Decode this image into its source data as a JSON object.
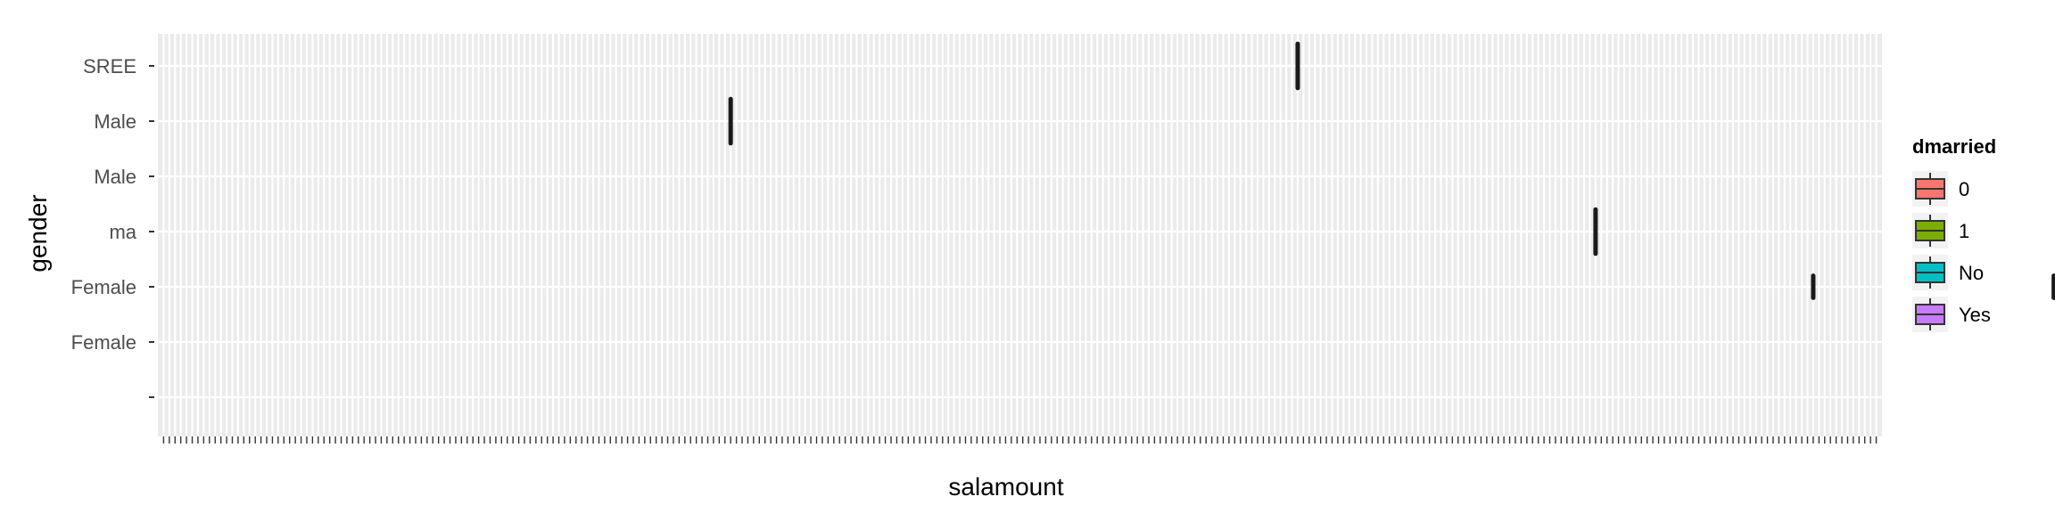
{
  "chart_data": {
    "type": "boxplot",
    "title": "",
    "xlabel": "salamount",
    "ylabel": "gender",
    "y_categories": [
      "",
      "Female",
      "Female ",
      "ma",
      "Male ",
      "Male",
      "SREE"
    ],
    "x_category_count": 300,
    "grid": true,
    "background": "#EBEBEB",
    "legend": {
      "title": "dmarried",
      "position": "right",
      "items": [
        {
          "label": "0",
          "color": "#F8766D"
        },
        {
          "label": "1",
          "color": "#7CAE00"
        },
        {
          "label": "No",
          "color": "#00BFC4"
        },
        {
          "label": "Yes",
          "color": "#C77CFF"
        }
      ]
    },
    "boxes": [
      {
        "x": 198,
        "gender": "SREE",
        "ymin": -0.4,
        "ymax": 0.4
      },
      {
        "x": 99,
        "gender": "Male",
        "ymin": -0.4,
        "ymax": 0.4
      },
      {
        "x": 250,
        "gender": "ma",
        "ymin": -0.4,
        "ymax": 0.4
      },
      {
        "x": 288,
        "gender": "Female ",
        "ymin": -0.2,
        "ymax": 0.2
      },
      {
        "x": 330,
        "gender": "Female ",
        "ymin": -0.2,
        "ymax": 0.2
      }
    ]
  }
}
